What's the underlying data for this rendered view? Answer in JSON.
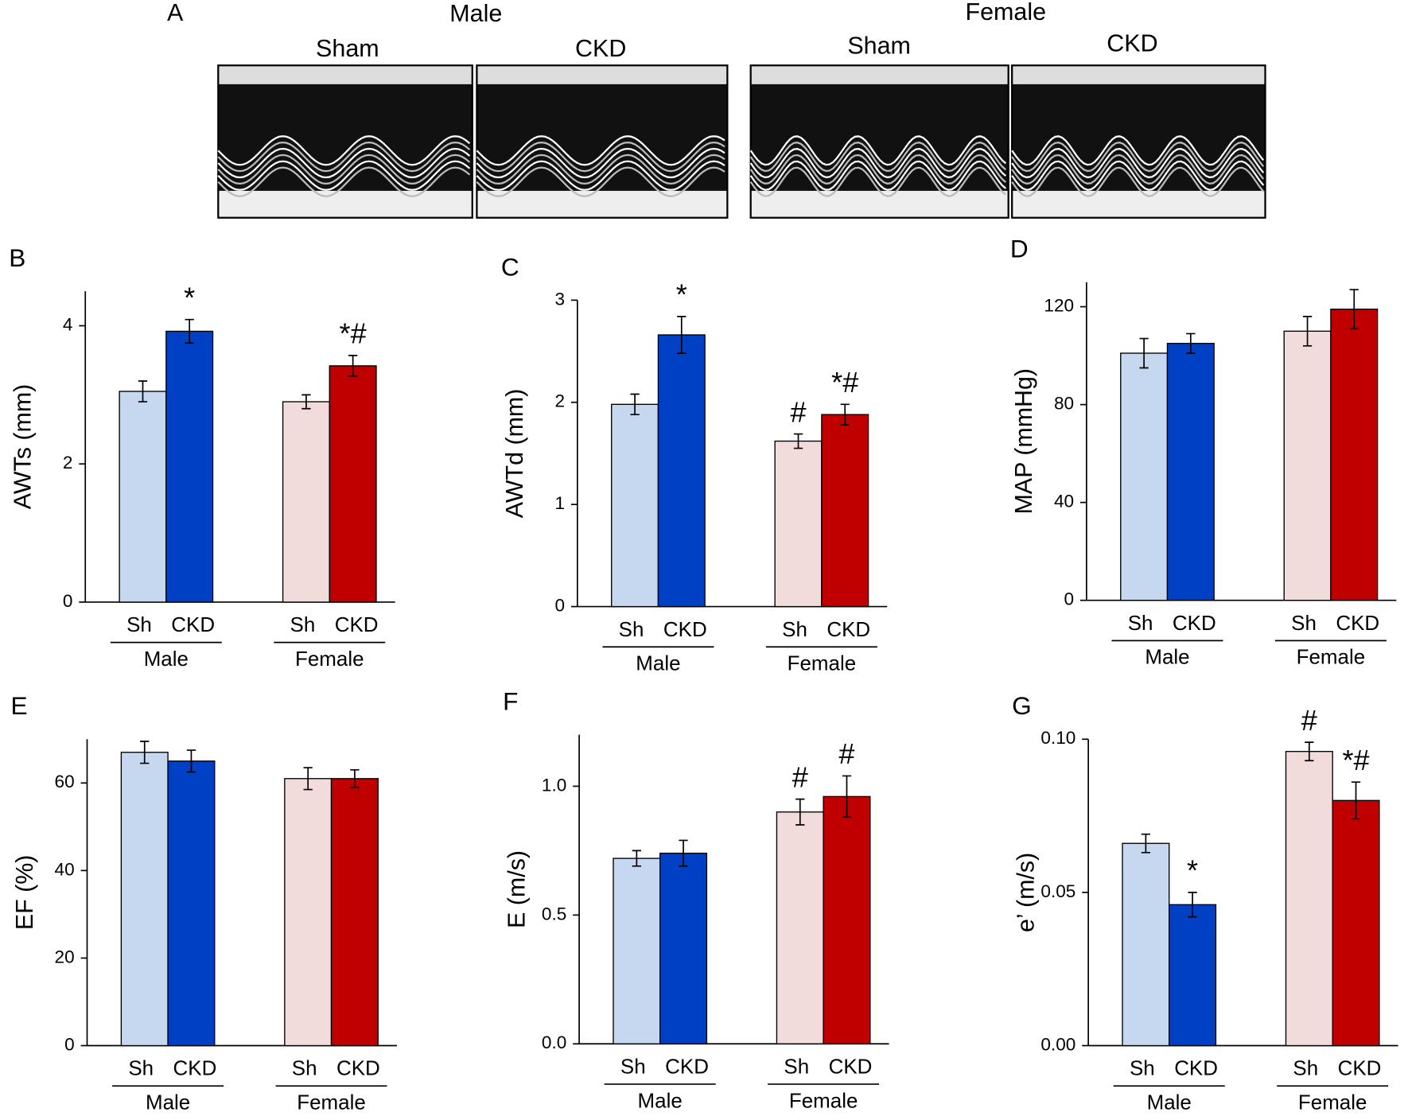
{
  "panel_a": {
    "label": "A",
    "groups": [
      {
        "name": "Male",
        "images": [
          "Sham",
          "CKD"
        ]
      },
      {
        "name": "Female",
        "images": [
          "Sham",
          "CKD"
        ]
      }
    ]
  },
  "chart_data": [
    {
      "type": "bar",
      "panel": "B",
      "ylabel": "AWTs (mm)",
      "categories": [
        "Sh",
        "CKD",
        "Sh",
        "CKD"
      ],
      "groups": [
        "Male",
        "Female"
      ],
      "values": [
        3.05,
        3.92,
        2.9,
        3.42
      ],
      "errors": [
        0.15,
        0.17,
        0.1,
        0.15
      ],
      "annotations": [
        null,
        "*",
        null,
        "*#"
      ],
      "colors": [
        "#c6d8ef",
        "#0040c4",
        "#f2dcdb",
        "#c00000"
      ],
      "ylim": [
        0,
        4.5
      ],
      "yticks": [
        0,
        2,
        4
      ]
    },
    {
      "type": "bar",
      "panel": "C",
      "ylabel": "AWTd (mm)",
      "categories": [
        "Sh",
        "CKD",
        "Sh",
        "CKD"
      ],
      "groups": [
        "Male",
        "Female"
      ],
      "values": [
        1.98,
        2.66,
        1.62,
        1.88
      ],
      "errors": [
        0.1,
        0.18,
        0.07,
        0.1
      ],
      "annotations": [
        null,
        "*",
        "#",
        "*#"
      ],
      "colors": [
        "#c6d8ef",
        "#0040c4",
        "#f2dcdb",
        "#c00000"
      ],
      "ylim": [
        0,
        3
      ],
      "yticks": [
        0,
        1,
        2,
        3
      ]
    },
    {
      "type": "bar",
      "panel": "D",
      "ylabel": "MAP (mmHg)",
      "categories": [
        "Sh",
        "CKD",
        "Sh",
        "CKD"
      ],
      "groups": [
        "Male",
        "Female"
      ],
      "values": [
        101,
        105,
        110,
        119
      ],
      "errors": [
        6,
        4,
        6,
        8
      ],
      "annotations": [
        null,
        null,
        null,
        null
      ],
      "colors": [
        "#c6d8ef",
        "#0040c4",
        "#f2dcdb",
        "#c00000"
      ],
      "ylim": [
        0,
        130
      ],
      "yticks": [
        0,
        40,
        80,
        120
      ]
    },
    {
      "type": "bar",
      "panel": "E",
      "ylabel": "EF (%)",
      "categories": [
        "Sh",
        "CKD",
        "Sh",
        "CKD"
      ],
      "groups": [
        "Male",
        "Female"
      ],
      "values": [
        67,
        65,
        61,
        61
      ],
      "errors": [
        2.5,
        2.5,
        2.5,
        2
      ],
      "annotations": [
        null,
        null,
        null,
        null
      ],
      "colors": [
        "#c6d8ef",
        "#0040c4",
        "#f2dcdb",
        "#c00000"
      ],
      "ylim": [
        0,
        70
      ],
      "yticks": [
        0,
        20,
        40,
        60
      ]
    },
    {
      "type": "bar",
      "panel": "F",
      "ylabel": "E (m/s)",
      "categories": [
        "Sh",
        "CKD",
        "Sh",
        "CKD"
      ],
      "groups": [
        "Male",
        "Female"
      ],
      "values": [
        0.72,
        0.74,
        0.9,
        0.96
      ],
      "errors": [
        0.03,
        0.05,
        0.05,
        0.08
      ],
      "annotations": [
        null,
        null,
        "#",
        "#"
      ],
      "colors": [
        "#c6d8ef",
        "#0040c4",
        "#f2dcdb",
        "#c00000"
      ],
      "ylim": [
        0,
        1.2
      ],
      "yticks": [
        {
          "value": 0,
          "label": "0.0"
        },
        0.5,
        {
          "value": 1,
          "label": "1.0"
        }
      ]
    },
    {
      "type": "bar",
      "panel": "G",
      "ylabel": "e’ (m/s)",
      "categories": [
        "Sh",
        "CKD",
        "Sh",
        "CKD"
      ],
      "groups": [
        "Male",
        "Female"
      ],
      "values": [
        0.066,
        0.046,
        0.096,
        0.08
      ],
      "errors": [
        0.003,
        0.004,
        0.003,
        0.006
      ],
      "annotations": [
        null,
        "*",
        "#",
        "*#"
      ],
      "colors": [
        "#c6d8ef",
        "#0040c4",
        "#f2dcdb",
        "#c00000"
      ],
      "ylim": [
        0,
        0.1
      ],
      "yticks": [
        {
          "value": 0,
          "label": "0.00"
        },
        0.05,
        {
          "value": 0.1,
          "label": "0.10"
        }
      ]
    }
  ]
}
